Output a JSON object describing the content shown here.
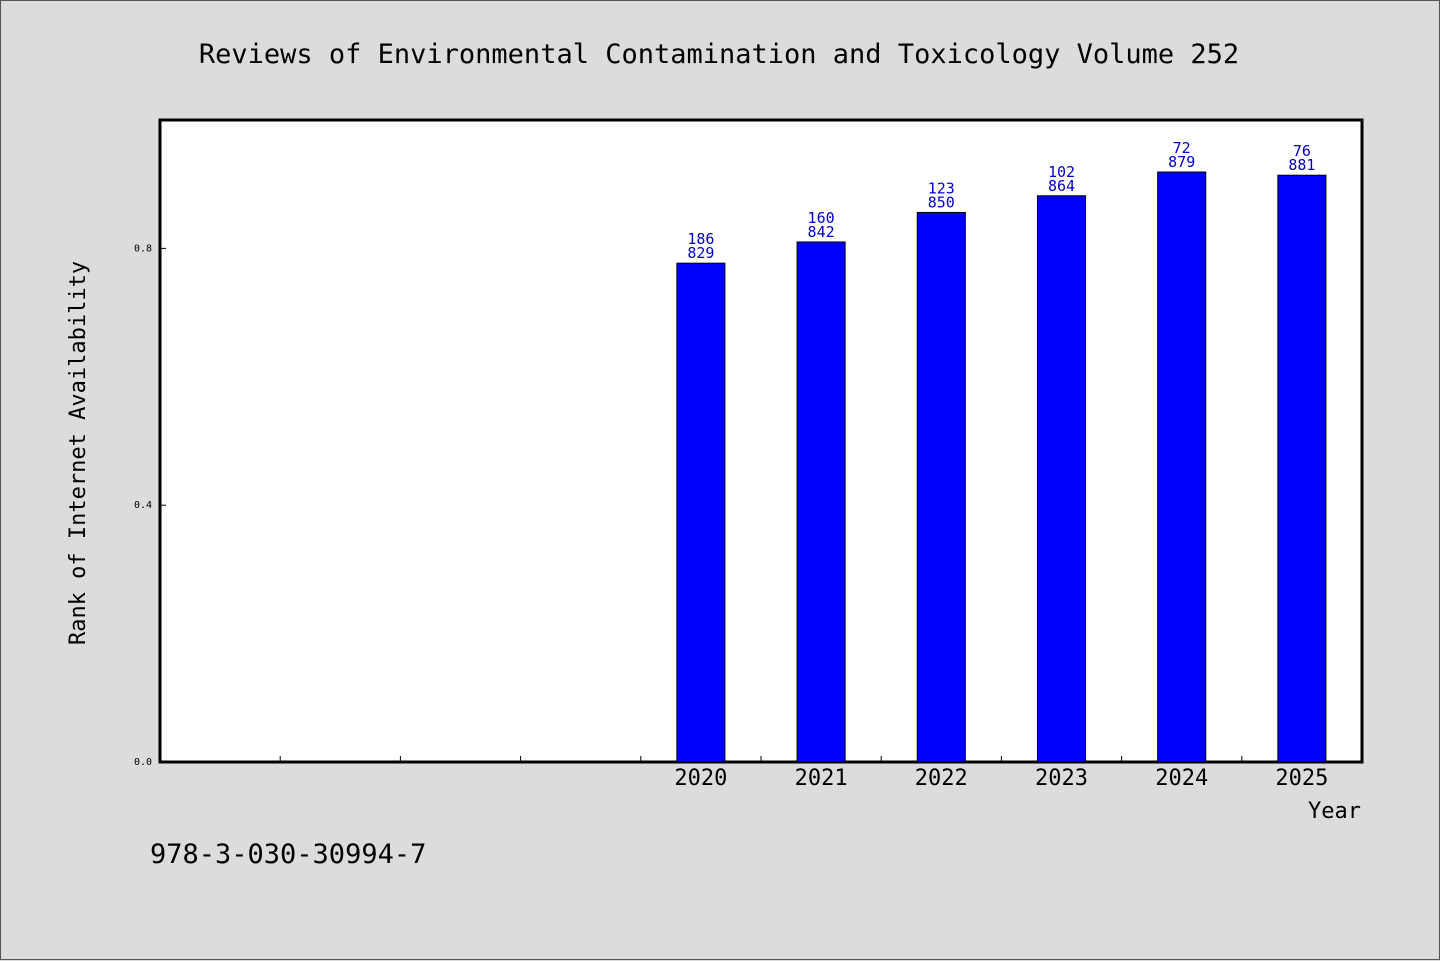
{
  "chart_data": {
    "type": "bar",
    "title": "Reviews of Environmental Contamination and Toxicology Volume 252",
    "xlabel": "Year",
    "ylabel": "Rank of Internet Availability",
    "ylim": [
      0,
      1.0
    ],
    "yticks": [
      "0.0",
      "0.4",
      "0.8"
    ],
    "ytick_values": [
      0.0,
      0.4,
      0.8
    ],
    "grid": false,
    "bar_color": "#0000ff",
    "label_color": "#0000cc",
    "slots": 10,
    "first_labeled_slot": 4,
    "categories": [
      "2020",
      "2021",
      "2022",
      "2023",
      "2024",
      "2025"
    ],
    "values": [
      0.777,
      0.81,
      0.856,
      0.882,
      0.919,
      0.914
    ],
    "labels_top": [
      "186",
      "160",
      "123",
      "102",
      "72",
      "76"
    ],
    "labels_bottom": [
      "829",
      "842",
      "850",
      "864",
      "879",
      "881"
    ]
  },
  "footer": {
    "isbn": "978-3-030-30994-7"
  }
}
